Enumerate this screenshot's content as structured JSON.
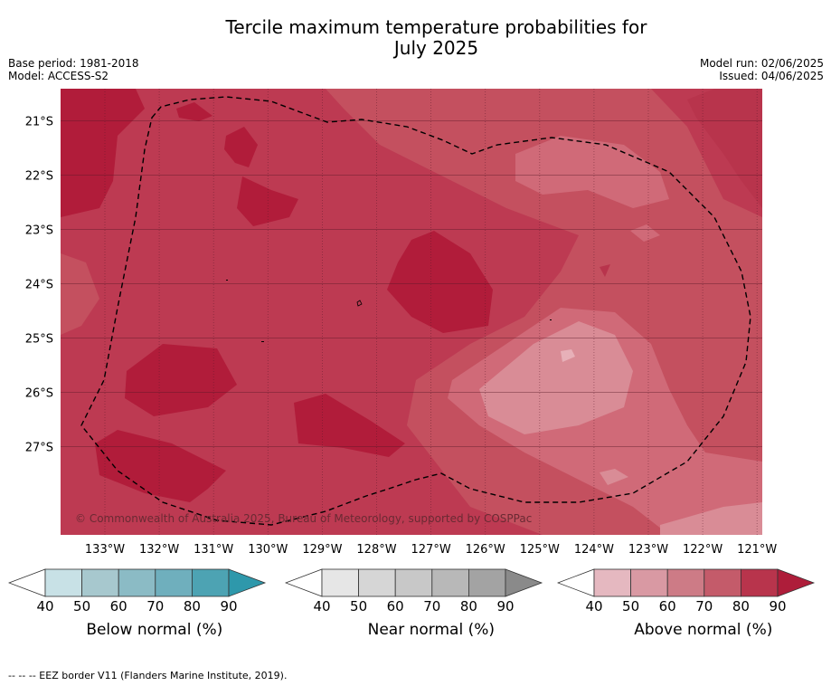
{
  "title_line1": "Tercile maximum temperature probabilities for",
  "title_line2": "July 2025",
  "meta_left": {
    "base_period": "Base period: 1981-2018",
    "model": "Model: ACCESS-S2"
  },
  "meta_right": {
    "model_run": "Model run: 02/06/2025",
    "issued": "Issued: 04/06/2025"
  },
  "lat_ticks": [
    "21°S",
    "22°S",
    "23°S",
    "24°S",
    "25°S",
    "26°S",
    "27°S"
  ],
  "lon_ticks": [
    "133°W",
    "132°W",
    "131°W",
    "130°W",
    "129°W",
    "128°W",
    "127°W",
    "126°W",
    "125°W",
    "124°W",
    "123°W",
    "122°W",
    "121°W"
  ],
  "copyright": "© Commonwealth of Australia 2025, Bureau of Meteorology, supported by COSPPac",
  "colorbars": [
    {
      "label": "Below normal (%)",
      "ticks": [
        "40",
        "50",
        "60",
        "70",
        "80",
        "90"
      ],
      "colors": [
        "#c8e1e6",
        "#a7c8ce",
        "#8bbbc5",
        "#6fafbd",
        "#4da3b3",
        "#2e98ab"
      ]
    },
    {
      "label": "Near normal (%)",
      "ticks": [
        "40",
        "50",
        "60",
        "70",
        "80",
        "90"
      ],
      "colors": [
        "#e6e6e6",
        "#d6d6d6",
        "#c8c8c8",
        "#b8b8b8",
        "#a3a3a3",
        "#8a8a8a"
      ]
    },
    {
      "label": "Above normal (%)",
      "ticks": [
        "40",
        "50",
        "60",
        "70",
        "80",
        "90"
      ],
      "colors": [
        "#e5b8c0",
        "#d999a3",
        "#cd7b86",
        "#c45b6a",
        "#b8344c",
        "#ae1d3a"
      ]
    }
  ],
  "footnote": "--  --  -- EEZ border V11 (Flanders Marine Institute, 2019)."
}
